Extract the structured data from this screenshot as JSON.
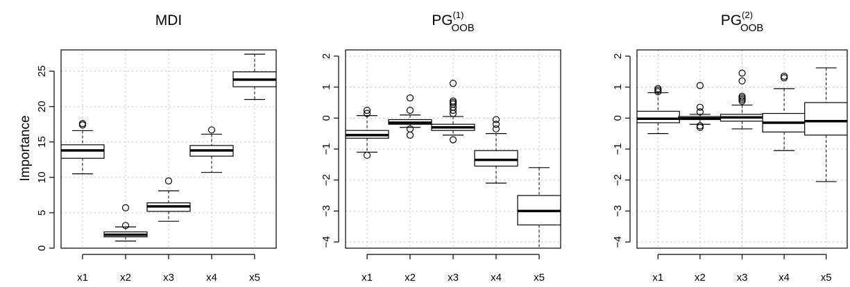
{
  "figure": {
    "ylabel": "Importance"
  },
  "chart_data": [
    {
      "type": "boxplot",
      "title": "MDI",
      "title_main": "MDI",
      "title_sup": "",
      "title_sub": "",
      "xlabel": "",
      "ylabel": "Importance",
      "categories": [
        "x1",
        "x2",
        "x3",
        "x4",
        "x5"
      ],
      "ylim": [
        0,
        28
      ],
      "yticks": [
        0,
        5,
        10,
        15,
        20,
        25
      ],
      "ytick_labels": [
        "0",
        "5",
        "10",
        "15",
        "20",
        "25"
      ],
      "grid": true,
      "boxes": [
        {
          "whisker_low": 10.5,
          "q1": 12.7,
          "median": 13.8,
          "q3": 14.6,
          "whisker_high": 16.6,
          "outliers": [
            17.4,
            17.6
          ]
        },
        {
          "whisker_low": 1.0,
          "q1": 1.6,
          "median": 1.9,
          "q3": 2.3,
          "whisker_high": 3.0,
          "outliers": [
            3.2,
            5.7
          ]
        },
        {
          "whisker_low": 3.8,
          "q1": 5.2,
          "median": 5.9,
          "q3": 6.4,
          "whisker_high": 8.1,
          "outliers": [
            9.5
          ]
        },
        {
          "whisker_low": 10.7,
          "q1": 13.0,
          "median": 13.8,
          "q3": 14.5,
          "whisker_high": 16.1,
          "outliers": [
            16.7
          ]
        },
        {
          "whisker_low": 21.0,
          "q1": 22.8,
          "median": 23.8,
          "q3": 24.9,
          "whisker_high": 27.4,
          "outliers": []
        }
      ]
    },
    {
      "type": "boxplot",
      "title": "PG(1)OOB",
      "title_main": "PG",
      "title_sup": "(1)",
      "title_sub": "OOB",
      "xlabel": "",
      "ylabel": "",
      "categories": [
        "x1",
        "x2",
        "x3",
        "x4",
        "x5"
      ],
      "ylim": [
        -4.2,
        2.2
      ],
      "yticks": [
        -4,
        -3,
        -2,
        -1,
        0,
        1,
        2
      ],
      "ytick_labels": [
        "−4",
        "−3",
        "−2",
        "−1",
        "0",
        "1",
        "2"
      ],
      "grid": true,
      "boxes": [
        {
          "whisker_low": -1.1,
          "q1": -0.65,
          "median": -0.55,
          "q3": -0.4,
          "whisker_high": 0.08,
          "outliers": [
            0.15,
            0.25,
            -1.2
          ]
        },
        {
          "whisker_low": -0.3,
          "q1": -0.2,
          "median": -0.15,
          "q3": -0.05,
          "whisker_high": 0.1,
          "outliers": [
            -0.35,
            -0.55,
            0.25,
            0.65
          ]
        },
        {
          "whisker_low": -0.55,
          "q1": -0.4,
          "median": -0.3,
          "q3": -0.2,
          "whisker_high": 0.05,
          "outliers": [
            -0.7,
            0.15,
            0.25,
            0.35,
            0.45,
            0.5,
            0.55,
            1.12
          ]
        },
        {
          "whisker_low": -2.1,
          "q1": -1.55,
          "median": -1.35,
          "q3": -1.05,
          "whisker_high": -0.5,
          "outliers": [
            -0.35,
            -0.2,
            -0.05
          ]
        },
        {
          "whisker_low": -4.5,
          "q1": -3.45,
          "median": -3.0,
          "q3": -2.5,
          "whisker_high": -1.6,
          "outliers": []
        }
      ]
    },
    {
      "type": "boxplot",
      "title": "PG(2)OOB",
      "title_main": "PG",
      "title_sup": "(2)",
      "title_sub": "OOB",
      "xlabel": "",
      "ylabel": "",
      "categories": [
        "x1",
        "x2",
        "x3",
        "x4",
        "x5"
      ],
      "ylim": [
        -4.2,
        2.2
      ],
      "yticks": [
        -4,
        -3,
        -2,
        -1,
        0,
        1,
        2
      ],
      "ytick_labels": [
        "−4",
        "−3",
        "−2",
        "−1",
        "0",
        "1",
        "2"
      ],
      "grid": true,
      "boxes": [
        {
          "whisker_low": -0.5,
          "q1": -0.15,
          "median": -0.02,
          "q3": 0.22,
          "whisker_high": 0.82,
          "outliers": [
            0.85,
            0.9,
            0.95
          ]
        },
        {
          "whisker_low": -0.2,
          "q1": -0.05,
          "median": -0.01,
          "q3": 0.05,
          "whisker_high": 0.12,
          "outliers": [
            -0.25,
            -0.3,
            0.2,
            0.35,
            1.05
          ]
        },
        {
          "whisker_low": -0.35,
          "q1": -0.1,
          "median": 0.02,
          "q3": 0.12,
          "whisker_high": 0.42,
          "outliers": [
            0.55,
            0.6,
            0.65,
            0.7,
            1.2,
            1.45
          ]
        },
        {
          "whisker_low": -1.05,
          "q1": -0.45,
          "median": -0.15,
          "q3": 0.15,
          "whisker_high": 0.95,
          "outliers": [
            1.3,
            1.35
          ]
        },
        {
          "whisker_low": -2.05,
          "q1": -0.55,
          "median": -0.1,
          "q3": 0.5,
          "whisker_high": 1.62,
          "outliers": []
        }
      ]
    }
  ]
}
